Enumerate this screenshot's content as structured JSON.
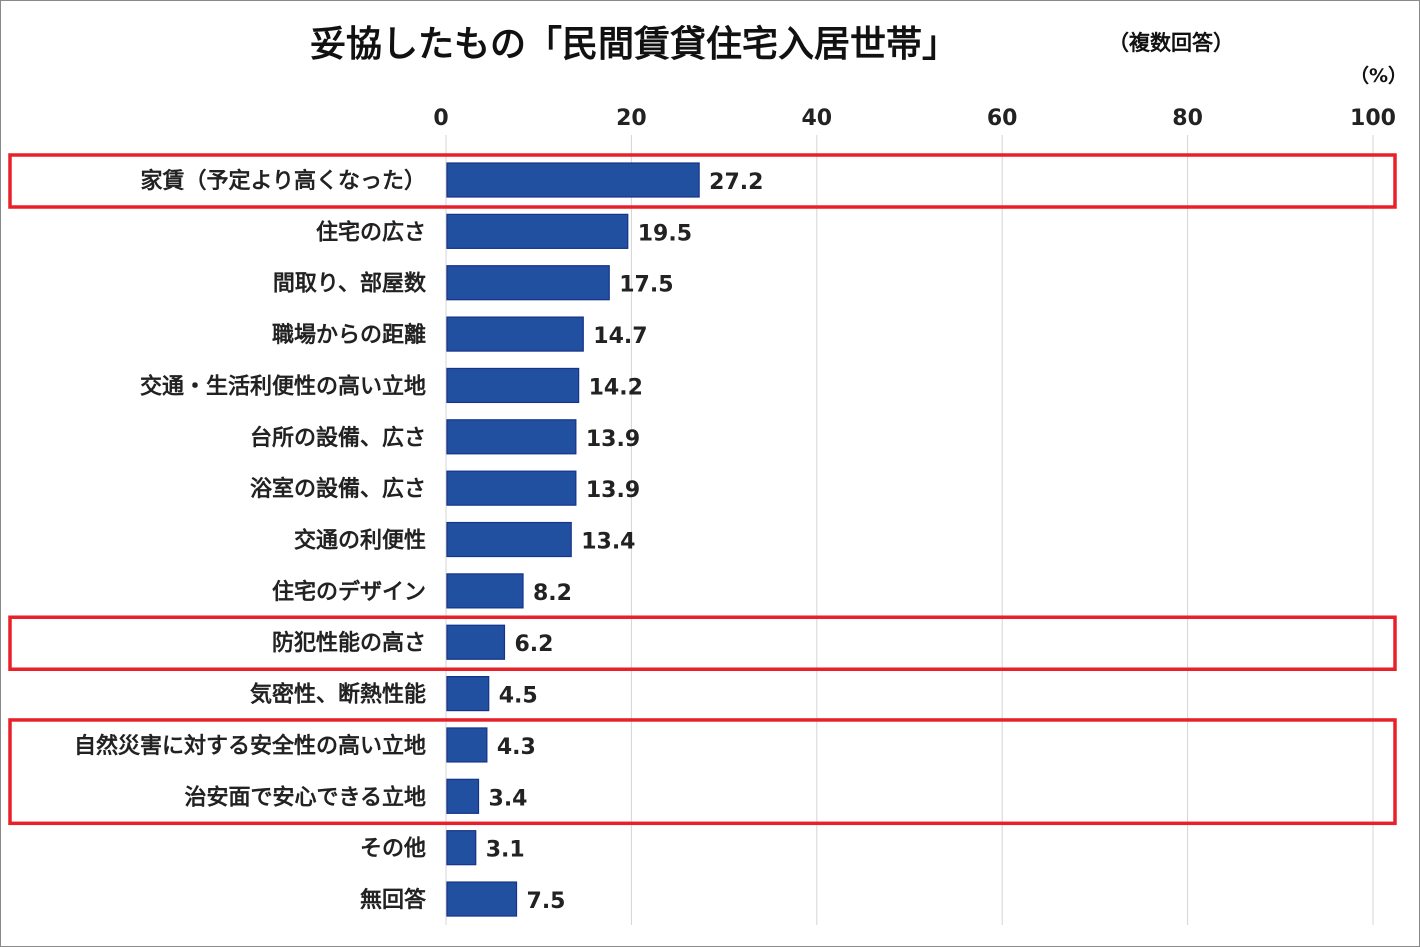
{
  "chart_data": {
    "type": "bar",
    "orientation": "horizontal",
    "title": "妥協したもの「民間賃貸住宅入居世帯」",
    "subtitle": "（複数回答）",
    "unit_label": "（%）",
    "xlim": [
      0,
      100
    ],
    "x_ticks": [
      "0",
      "20",
      "40",
      "60",
      "80",
      "100"
    ],
    "grid": true,
    "bar_color": "#2150a0",
    "highlight_color": "#e8202a",
    "categories": [
      "家賃（予定より高くなった）",
      "住宅の広さ",
      "間取り、部屋数",
      "職場からの距離",
      "交通・生活利便性の高い立地",
      "台所の設備、広さ",
      "浴室の設備、広さ",
      "交通の利便性",
      "住宅のデザイン",
      "防犯性能の高さ",
      "気密性、断熱性能",
      "自然災害に対する安全性の高い立地",
      "治安面で安心できる立地",
      "その他",
      "無回答"
    ],
    "values": [
      27.2,
      19.5,
      17.5,
      14.7,
      14.2,
      13.9,
      13.9,
      13.4,
      8.2,
      6.2,
      4.5,
      4.3,
      3.4,
      3.1,
      7.5
    ],
    "value_labels": [
      "27.2",
      "19.5",
      "17.5",
      "14.7",
      "14.2",
      "13.9",
      "13.9",
      "13.4",
      "8.2",
      "6.2",
      "4.5",
      "4.3",
      "3.4",
      "3.1",
      "7.5"
    ],
    "highlighted_groups": [
      [
        0
      ],
      [
        9
      ],
      [
        11,
        12
      ]
    ]
  }
}
